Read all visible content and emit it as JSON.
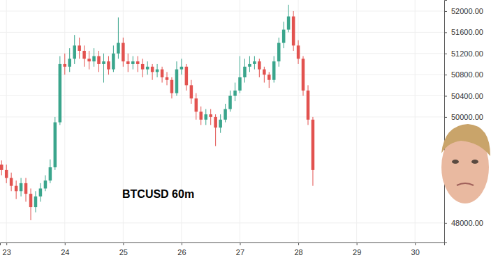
{
  "chart_data": {
    "type": "candlestick",
    "title": "BTCUSD 60m",
    "x": [
      22.917,
      23.0,
      23.083,
      23.167,
      23.25,
      23.333,
      23.417,
      23.5,
      23.583,
      23.667,
      23.75,
      23.833,
      23.917,
      24.0,
      24.083,
      24.167,
      24.25,
      24.333,
      24.417,
      24.5,
      24.583,
      24.667,
      24.75,
      24.833,
      24.917,
      25.0,
      25.083,
      25.167,
      25.25,
      25.333,
      25.417,
      25.5,
      25.583,
      25.667,
      25.75,
      25.833,
      25.917,
      26.0,
      26.083,
      26.167,
      26.25,
      26.333,
      26.417,
      26.5,
      26.583,
      26.667,
      26.75,
      26.833,
      26.917,
      27.0,
      27.083,
      27.167,
      27.25,
      27.333,
      27.417,
      27.5,
      27.583,
      27.667,
      27.75,
      27.833,
      27.917,
      28.0,
      28.083,
      28.167,
      28.25
    ],
    "open": [
      49100,
      49000,
      48850,
      48700,
      48600,
      48750,
      48550,
      48300,
      48500,
      48650,
      48800,
      49050,
      49900,
      51000,
      50950,
      51100,
      51350,
      51250,
      51100,
      51050,
      51150,
      51000,
      51050,
      50900,
      51200,
      51400,
      51050,
      51000,
      51050,
      51000,
      50900,
      50950,
      50850,
      50900,
      50750,
      50700,
      50450,
      50900,
      50950,
      50600,
      50350,
      50100,
      49950,
      50050,
      50000,
      49800,
      49950,
      50150,
      50400,
      50500,
      50750,
      50950,
      51000,
      51050,
      50900,
      50800,
      50700,
      51050,
      51400,
      51650,
      51900,
      51350,
      51100,
      50500,
      49950
    ],
    "high": [
      49180,
      49100,
      48950,
      48800,
      48850,
      48850,
      48650,
      48600,
      48750,
      48900,
      49200,
      50000,
      51150,
      51200,
      51300,
      51550,
      51500,
      51350,
      51250,
      51300,
      51250,
      51200,
      51150,
      51350,
      51880,
      51500,
      51200,
      51150,
      51150,
      51100,
      51050,
      51000,
      51000,
      50950,
      50850,
      50750,
      51050,
      51100,
      51000,
      50700,
      50450,
      50200,
      50150,
      50150,
      50050,
      50050,
      50250,
      50500,
      50650,
      51150,
      51100,
      51150,
      51150,
      51100,
      50950,
      50850,
      51150,
      51500,
      51800,
      52120,
      52000,
      51450,
      51150,
      50600,
      50000
    ],
    "low": [
      48900,
      48750,
      48600,
      48450,
      48500,
      48400,
      48050,
      48200,
      48400,
      48600,
      48750,
      49000,
      49850,
      50800,
      50850,
      51000,
      51100,
      50950,
      50900,
      50950,
      50850,
      50650,
      50800,
      50850,
      51100,
      50950,
      50850,
      50900,
      50850,
      50750,
      50800,
      50700,
      50750,
      50650,
      50600,
      50350,
      50400,
      50800,
      50500,
      50250,
      49950,
      49850,
      49850,
      49850,
      49450,
      49700,
      49900,
      50100,
      50300,
      50450,
      50650,
      50850,
      50900,
      50750,
      50650,
      50550,
      50650,
      50950,
      51300,
      51600,
      51250,
      51000,
      50400,
      49850,
      48700
    ],
    "close": [
      49000,
      48850,
      48700,
      48600,
      48750,
      48550,
      48300,
      48500,
      48650,
      48800,
      49050,
      49900,
      51000,
      50950,
      51100,
      51350,
      51250,
      51100,
      51050,
      51150,
      51000,
      51050,
      50900,
      51200,
      51400,
      51050,
      51000,
      51050,
      51000,
      50900,
      50950,
      50850,
      50900,
      50750,
      50700,
      50450,
      50900,
      50950,
      50600,
      50350,
      50100,
      49950,
      50050,
      50000,
      49800,
      49950,
      50150,
      50400,
      50500,
      50750,
      50950,
      51000,
      51050,
      50900,
      50800,
      50700,
      51050,
      51400,
      51650,
      51900,
      51350,
      51100,
      50500,
      49950,
      49000
    ],
    "color": {
      "up": "#3aa58c",
      "down": "#e2524f"
    },
    "xlim": [
      22.89,
      30.5
    ],
    "xticks": [
      23,
      24,
      25,
      26,
      27,
      28,
      29,
      30
    ],
    "ylim": [
      47630,
      52210
    ],
    "yticks": [
      {
        "value": 48000,
        "label": "48000.00"
      },
      {
        "value": 50000,
        "label": "50000.00"
      },
      {
        "value": 50400,
        "label": "50400.00"
      },
      {
        "value": 50800,
        "label": "50800.00"
      },
      {
        "value": 51200,
        "label": "51200.00"
      },
      {
        "value": 51600,
        "label": "51600.00"
      },
      {
        "value": 52000,
        "label": "52000.00"
      }
    ],
    "grid": true
  }
}
